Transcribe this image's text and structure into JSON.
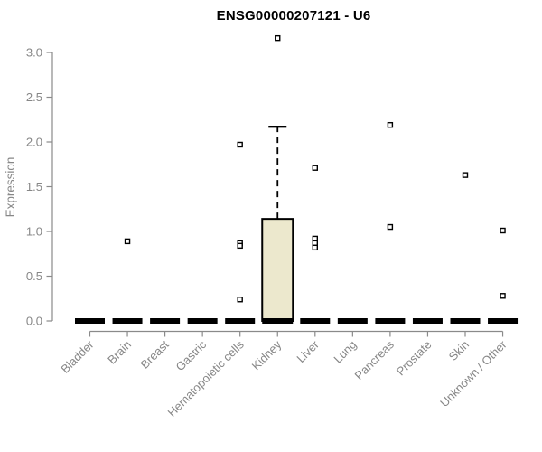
{
  "title": "ENSG00000207121 - U6",
  "chart_data": {
    "type": "boxplot",
    "title": "ENSG00000207121 - U6",
    "xlabel": "",
    "ylabel": "Expression",
    "ylim": [
      0,
      3.2
    ],
    "y_ticks": [
      0.0,
      0.5,
      1.0,
      1.5,
      2.0,
      2.5,
      3.0
    ],
    "y_tick_labels": [
      "0.0",
      "0.5",
      "1.0",
      "1.5",
      "2.0",
      "2.5",
      "3.0"
    ],
    "grid": false,
    "legend": null,
    "categories": [
      "Bladder",
      "Brain",
      "Breast",
      "Gastric",
      "Hematopoietic cells",
      "Kidney",
      "Liver",
      "Lung",
      "Pancreas",
      "Prostate",
      "Skin",
      "Unknown / Other"
    ],
    "boxes": [
      {
        "category": "Bladder",
        "q1": 0,
        "median": 0,
        "q3": 0,
        "whisker_low": 0,
        "whisker_high": 0,
        "outliers": []
      },
      {
        "category": "Brain",
        "q1": 0,
        "median": 0,
        "q3": 0,
        "whisker_low": 0,
        "whisker_high": 0,
        "outliers": [
          0.89
        ]
      },
      {
        "category": "Breast",
        "q1": 0,
        "median": 0,
        "q3": 0,
        "whisker_low": 0,
        "whisker_high": 0,
        "outliers": []
      },
      {
        "category": "Gastric",
        "q1": 0,
        "median": 0,
        "q3": 0,
        "whisker_low": 0,
        "whisker_high": 0,
        "outliers": []
      },
      {
        "category": "Hematopoietic cells",
        "q1": 0,
        "median": 0,
        "q3": 0,
        "whisker_low": 0,
        "whisker_high": 0,
        "outliers": [
          1.97,
          0.87,
          0.84,
          0.24
        ]
      },
      {
        "category": "Kidney",
        "q1": 0,
        "median": 0,
        "q3": 1.14,
        "whisker_low": 0,
        "whisker_high": 2.17,
        "outliers": [
          3.16
        ]
      },
      {
        "category": "Liver",
        "q1": 0,
        "median": 0,
        "q3": 0,
        "whisker_low": 0,
        "whisker_high": 0,
        "outliers": [
          1.71,
          0.92,
          0.87,
          0.82
        ]
      },
      {
        "category": "Lung",
        "q1": 0,
        "median": 0,
        "q3": 0,
        "whisker_low": 0,
        "whisker_high": 0,
        "outliers": []
      },
      {
        "category": "Pancreas",
        "q1": 0,
        "median": 0,
        "q3": 0,
        "whisker_low": 0,
        "whisker_high": 0,
        "outliers": [
          2.19,
          1.05
        ]
      },
      {
        "category": "Prostate",
        "q1": 0,
        "median": 0,
        "q3": 0,
        "whisker_low": 0,
        "whisker_high": 0,
        "outliers": []
      },
      {
        "category": "Skin",
        "q1": 0,
        "median": 0,
        "q3": 0,
        "whisker_low": 0,
        "whisker_high": 0,
        "outliers": [
          1.63
        ]
      },
      {
        "category": "Unknown / Other",
        "q1": 0,
        "median": 0,
        "q3": 0,
        "whisker_low": 0,
        "whisker_high": 0,
        "outliers": [
          1.01,
          0.28
        ]
      }
    ],
    "colors": {
      "background": "#ffffff",
      "box_fill": "#ece8cd",
      "box_stroke": "#000000",
      "median": "#000000",
      "whisker": "#000000",
      "outlier_stroke": "#000000",
      "outlier_fill": "#ffffff",
      "axis": "#8a8a8a",
      "tick_text": "#878787",
      "title_text": "#000000"
    }
  }
}
